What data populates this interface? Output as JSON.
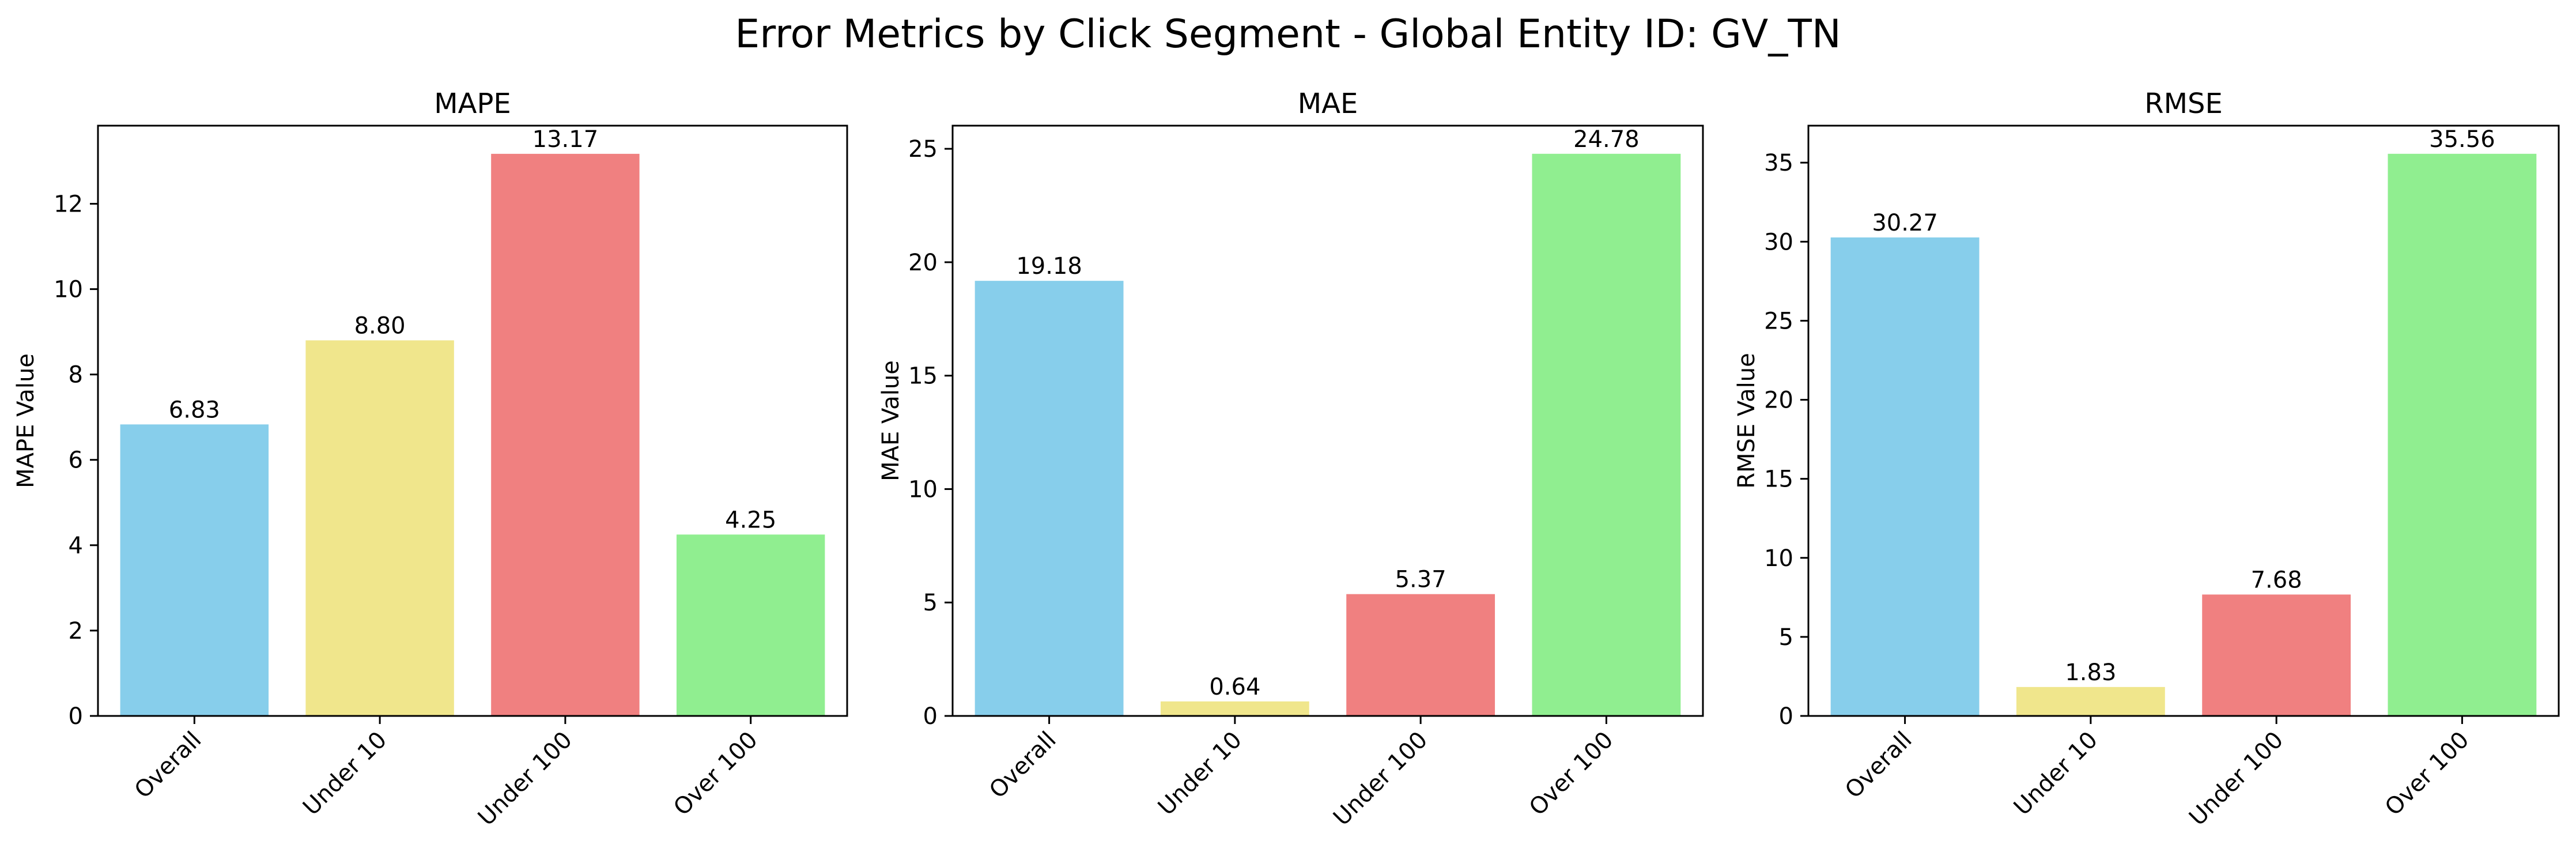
{
  "figure": {
    "title": "Error Metrics by Click Segment - Global Entity ID: GV_TN"
  },
  "chart_data": [
    {
      "type": "bar",
      "title": "MAPE",
      "xlabel": "",
      "ylabel": "MAPE Value",
      "categories": [
        "Overall",
        "Under 10",
        "Under 100",
        "Over 100"
      ],
      "values": [
        6.83,
        8.8,
        13.17,
        4.25
      ],
      "value_labels": [
        "6.83",
        "8.80",
        "13.17",
        "4.25"
      ],
      "colors": [
        "#87ceeb",
        "#f0e68c",
        "#f08080",
        "#90ee90"
      ],
      "ylim": [
        0,
        13.83
      ],
      "yticks": [
        0,
        2,
        4,
        6,
        8,
        10,
        12
      ],
      "grid": false,
      "xtick_rotation": 45
    },
    {
      "type": "bar",
      "title": "MAE",
      "xlabel": "",
      "ylabel": "MAE Value",
      "categories": [
        "Overall",
        "Under 10",
        "Under 100",
        "Over 100"
      ],
      "values": [
        19.18,
        0.64,
        5.37,
        24.78
      ],
      "value_labels": [
        "19.18",
        "0.64",
        "5.37",
        "24.78"
      ],
      "colors": [
        "#87ceeb",
        "#f0e68c",
        "#f08080",
        "#90ee90"
      ],
      "ylim": [
        0,
        26.02
      ],
      "yticks": [
        0,
        5,
        10,
        15,
        20,
        25
      ],
      "grid": false,
      "xtick_rotation": 45
    },
    {
      "type": "bar",
      "title": "RMSE",
      "xlabel": "",
      "ylabel": "RMSE Value",
      "categories": [
        "Overall",
        "Under 10",
        "Under 100",
        "Over 100"
      ],
      "values": [
        30.27,
        1.83,
        7.68,
        35.56
      ],
      "value_labels": [
        "30.27",
        "1.83",
        "7.68",
        "35.56"
      ],
      "colors": [
        "#87ceeb",
        "#f0e68c",
        "#f08080",
        "#90ee90"
      ],
      "ylim": [
        0,
        37.34
      ],
      "yticks": [
        0,
        5,
        10,
        15,
        20,
        25,
        30,
        35
      ],
      "grid": false,
      "xtick_rotation": 45
    }
  ]
}
